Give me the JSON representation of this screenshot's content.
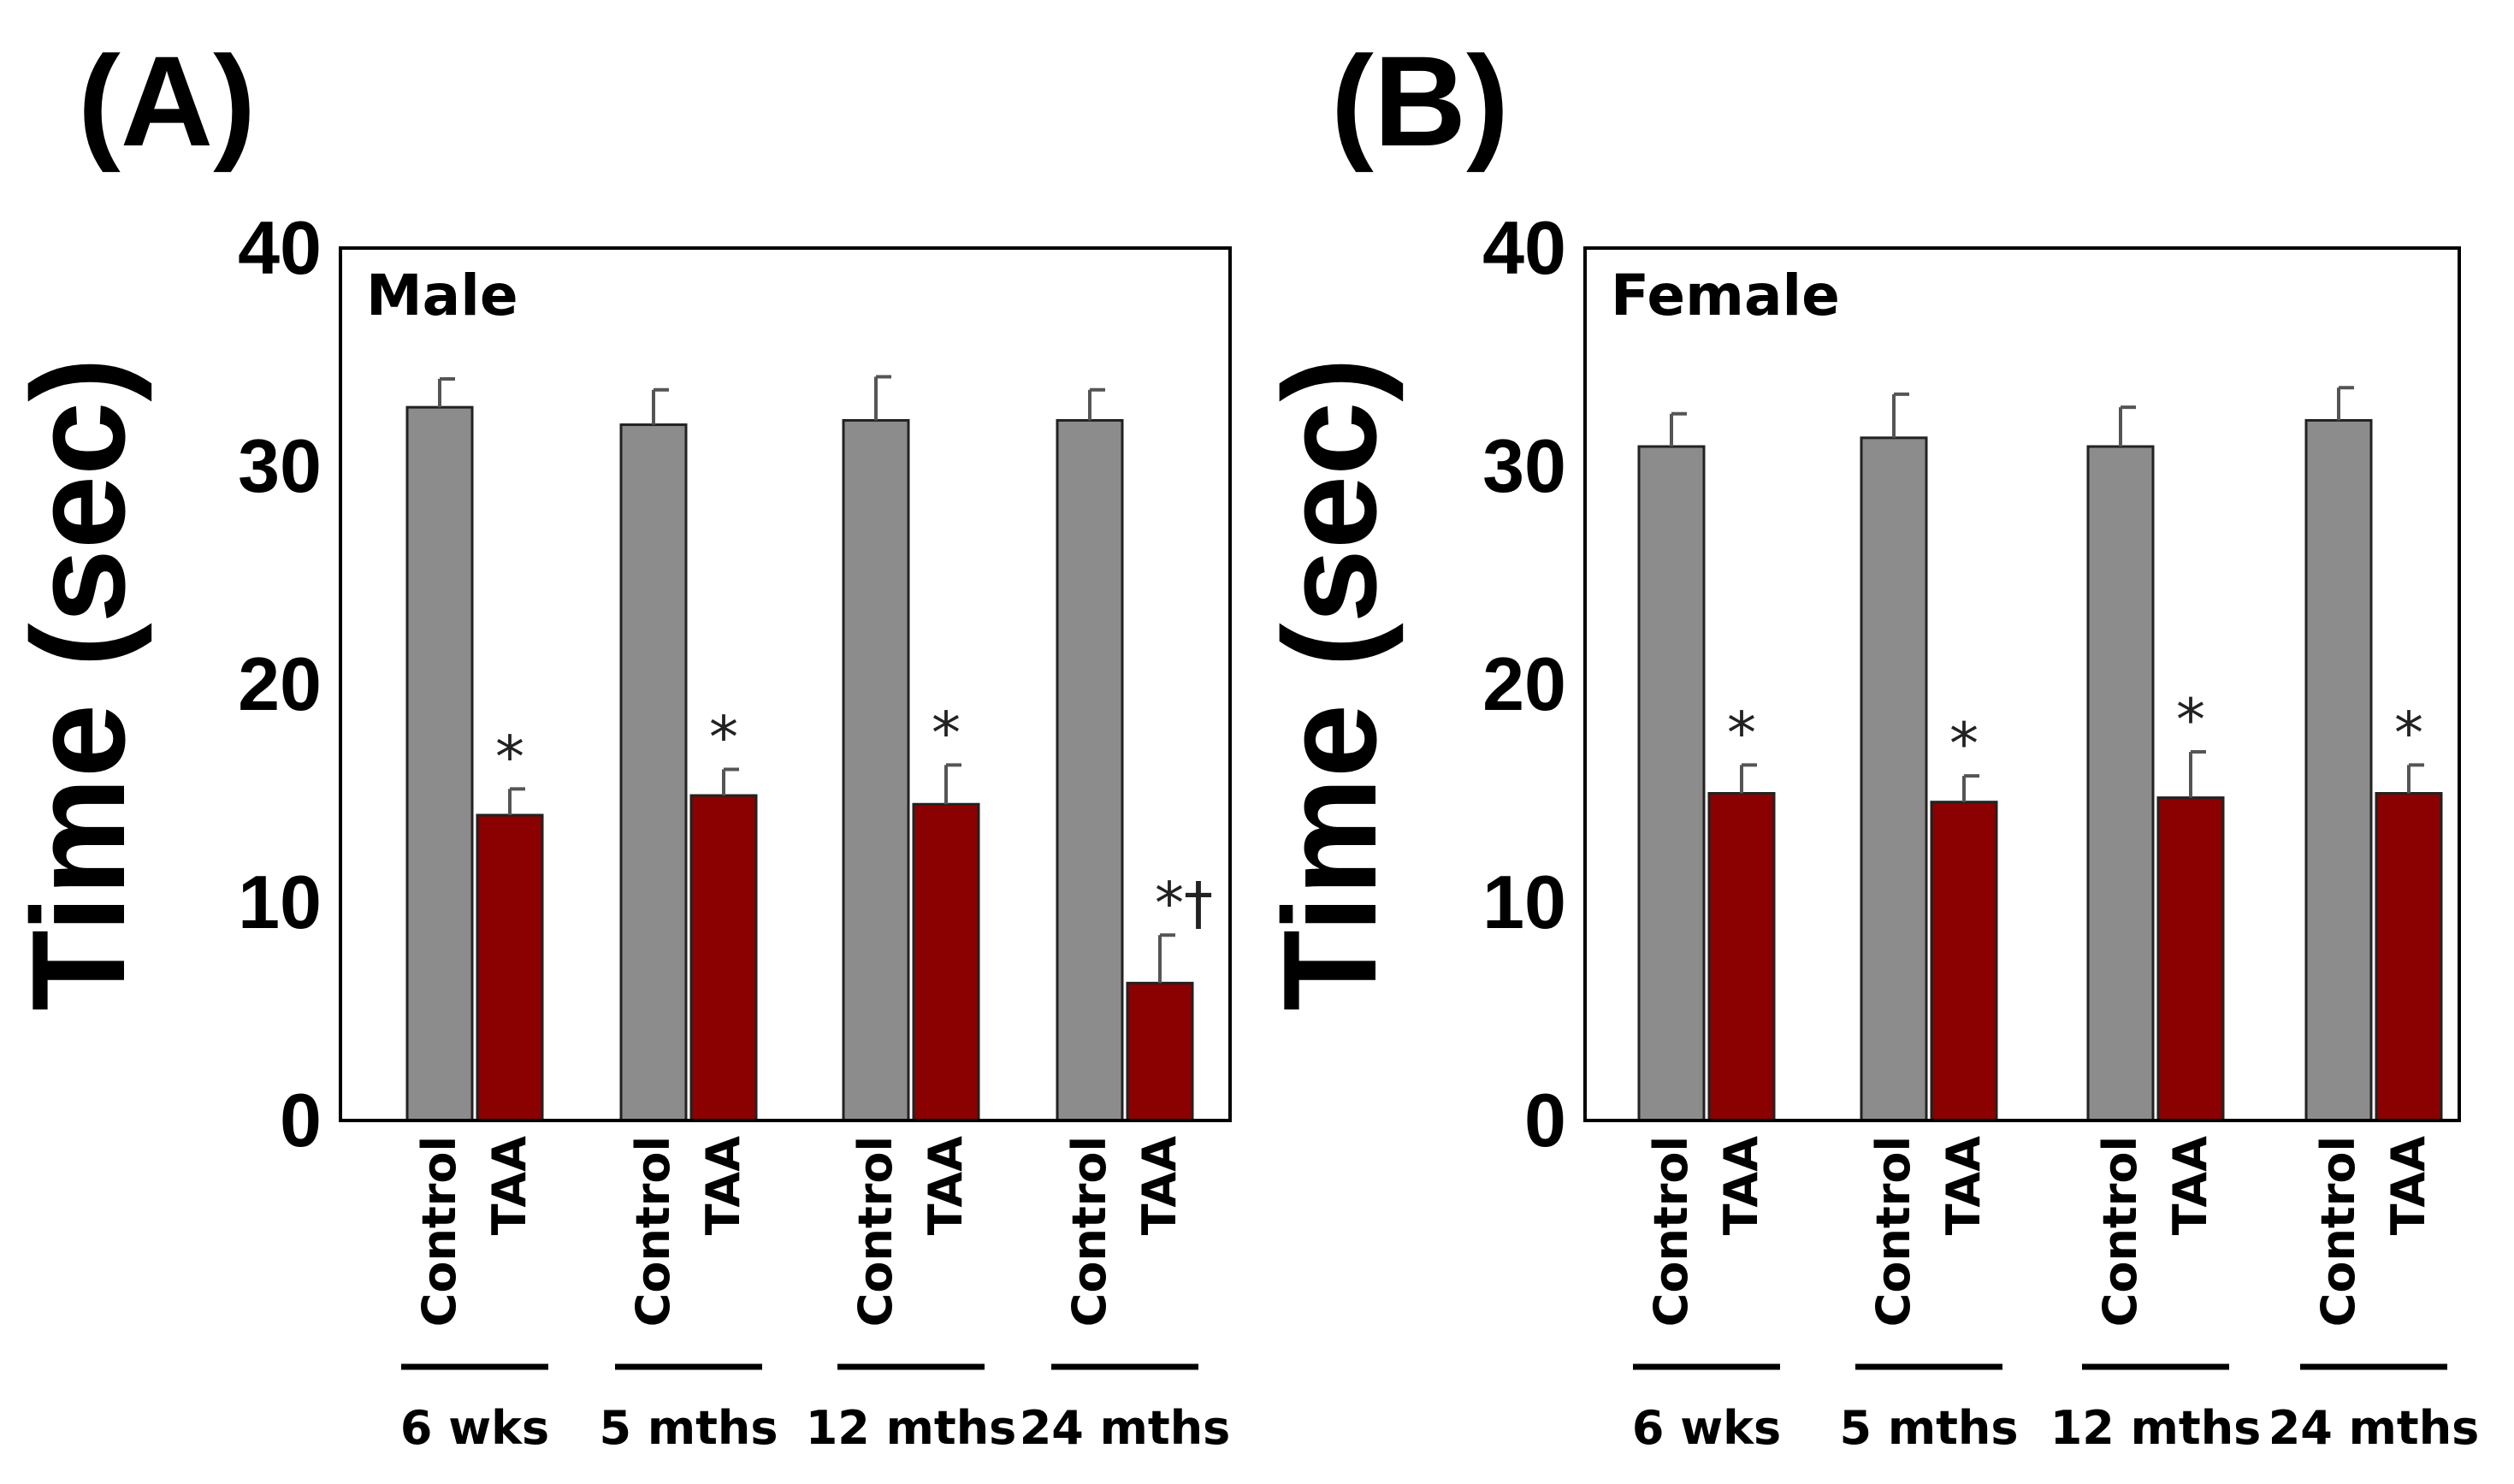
{
  "chart_data": [
    {
      "panel": "(A)",
      "type": "bar",
      "inset_label": "Male",
      "ylabel": "Time (sec)",
      "ylim": [
        0,
        40
      ],
      "yticks": [
        "0",
        "10",
        "20",
        "30",
        "40"
      ],
      "groups": [
        "6 wks",
        "5 mths",
        "12 mths",
        "24 mths"
      ],
      "bar_labels": [
        "Control",
        "TAA"
      ],
      "colors": {
        "Control": "#8c8c8c",
        "TAA": "#8b0000"
      },
      "series": [
        {
          "name": "Control",
          "values": [
            32.7,
            31.9,
            32.1,
            32.1
          ],
          "errors": [
            1.3,
            1.6,
            2.0,
            1.4
          ],
          "marks": [
            "",
            "",
            "",
            ""
          ]
        },
        {
          "name": "TAA",
          "values": [
            14.0,
            14.9,
            14.5,
            6.3
          ],
          "errors": [
            1.2,
            1.2,
            1.8,
            2.2
          ],
          "marks": [
            "*",
            "*",
            "*",
            "*†"
          ]
        }
      ]
    },
    {
      "panel": "(B)",
      "type": "bar",
      "inset_label": "Female",
      "ylabel": "Time (sec)",
      "ylim": [
        0,
        40
      ],
      "yticks": [
        "0",
        "10",
        "20",
        "30",
        "40"
      ],
      "groups": [
        "6 wks",
        "5 mths",
        "12 mths",
        "24 mths"
      ],
      "bar_labels": [
        "Control",
        "TAA"
      ],
      "colors": {
        "Control": "#8c8c8c",
        "TAA": "#8b0000"
      },
      "series": [
        {
          "name": "Control",
          "values": [
            30.9,
            31.3,
            30.9,
            32.1
          ],
          "errors": [
            1.5,
            2.0,
            1.8,
            1.5
          ],
          "marks": [
            "",
            "",
            "",
            ""
          ]
        },
        {
          "name": "TAA",
          "values": [
            15.0,
            14.6,
            14.8,
            15.0
          ],
          "errors": [
            1.3,
            1.2,
            2.1,
            1.3
          ],
          "marks": [
            "*",
            "*",
            "*",
            "*"
          ]
        }
      ]
    }
  ]
}
